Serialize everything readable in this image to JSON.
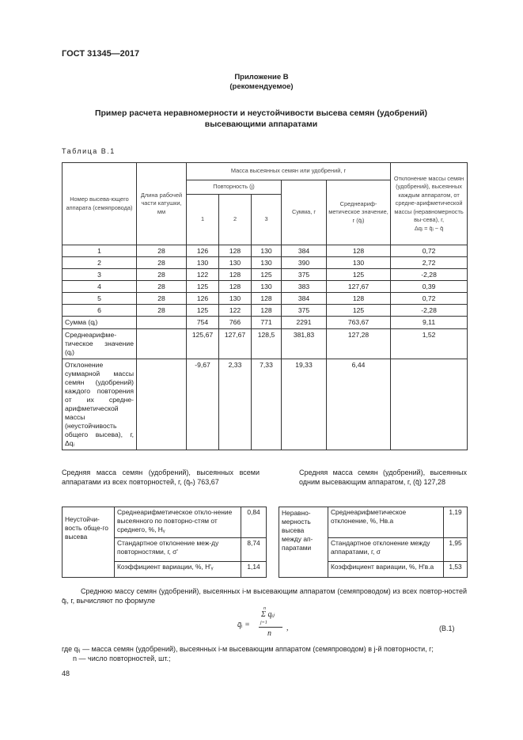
{
  "header": "ГОСТ 31345—2017",
  "appendix": {
    "title": "Приложение В",
    "subtitle": "(рекомендуемое)"
  },
  "title_line1": "Пример расчета неравномерности и неустойчивости высева семян (удобрений)",
  "title_line2": "высевающими аппаратами",
  "table_caption": "Таблица В.1",
  "table": {
    "h_num": "Номер высева-ющего аппарата (семяпровода)",
    "h_len": "Длина рабочей части катушки, мм",
    "h_mass": "Масса высеянных семян или удобрений, г",
    "h_rep": "Повторность (j)",
    "h_rep_cols": [
      "1",
      "2",
      "3"
    ],
    "h_sum": "Сумма, г",
    "h_mean": "Среднеариф-метическое значение, г (q̄ᵢ)",
    "h_dev": "Отклонение массы семян (удобрений), высеянных каждым аппаратом, от средне-арифметической массы (неравномерность вы-сева), г,",
    "h_dev_formula": "Δqᵢ = q̄ᵢ − q̄",
    "rows": [
      [
        "1",
        "28",
        "126",
        "128",
        "130",
        "384",
        "128",
        "0,72"
      ],
      [
        "2",
        "28",
        "130",
        "130",
        "130",
        "390",
        "130",
        "2,72"
      ],
      [
        "3",
        "28",
        "122",
        "128",
        "125",
        "375",
        "125",
        "-2,28"
      ],
      [
        "4",
        "28",
        "125",
        "128",
        "130",
        "383",
        "127,67",
        "0,39"
      ],
      [
        "5",
        "28",
        "126",
        "130",
        "128",
        "384",
        "128",
        "0,72"
      ],
      [
        "6",
        "28",
        "125",
        "122",
        "128",
        "375",
        "125",
        "-2,28"
      ]
    ],
    "sum_row": [
      "Сумма (qⱼ)",
      "",
      "754",
      "766",
      "771",
      "2291",
      "763,67",
      "9,11"
    ],
    "mean_row": [
      "Среднеарифме-тическое значение (qⱼ)",
      "",
      "125,67",
      "127,67",
      "128,5",
      "381,83",
      "127,28",
      "1,52"
    ],
    "dev_row": [
      "Отклонение суммарной массы семян (удобрений) каждого повторения от их средне-арифметической массы (неустойчивость общего высева), г, Δqⱼ",
      "",
      "-9,67",
      "2,33",
      "7,33",
      "19,33",
      "6,44",
      ""
    ]
  },
  "note_left": "Средняя масса семян (удобрений), высеянных всеми аппаратами из всех повторностей, г, (q̄ₙ) 763,67",
  "note_right": "Средняя масса семян (удобрений), высеянных одним высевающим аппаратом, г, (q̄) 127,28",
  "instability": {
    "label": "Неустойчи-вость обще-го высева",
    "items": [
      {
        "name": "Среднеарифметическое откло-нение высеянного по повторно-стям от среднего, %, Hᵧ",
        "value": "0,84"
      },
      {
        "name": "Стандартное отклонение меж-ду повторностями, г, σ'",
        "value": "8,74"
      },
      {
        "name": "Коэффициент вариации, %, H'ᵧ",
        "value": "1,14"
      }
    ]
  },
  "unevenness": {
    "label": "Неравно-мерность высева между ап-паратами",
    "items": [
      {
        "name": "Среднеарифметическое отклонение, %, Hв.а",
        "value": "1,19"
      },
      {
        "name": "Стандартное отклонение между аппаратами, г, σ",
        "value": "1,95"
      },
      {
        "name": "Коэффициент вариации, %, H'в.а",
        "value": "1,53"
      }
    ]
  },
  "para1": "Среднюю массу семян (удобрений), высеянных i-м высевающим аппаратом (семяпроводом) из всех повтор-ностей q̄ᵢ, г, вычисляют по формуле",
  "formula": {
    "lhs": "q̄ᵢ =",
    "num": "Σ qᵢⱼ",
    "sum_top": "n",
    "sum_bottom": "j=1",
    "den": "n",
    "tail": ",",
    "number": "(В.1)"
  },
  "where1": "где qᵢⱼ — масса семян (удобрений), высеянных i-м высевающим аппаратом (семяпроводом) в j-й повторности, г;",
  "where2": "n — число повторностей, шт.;",
  "page_number": "48"
}
